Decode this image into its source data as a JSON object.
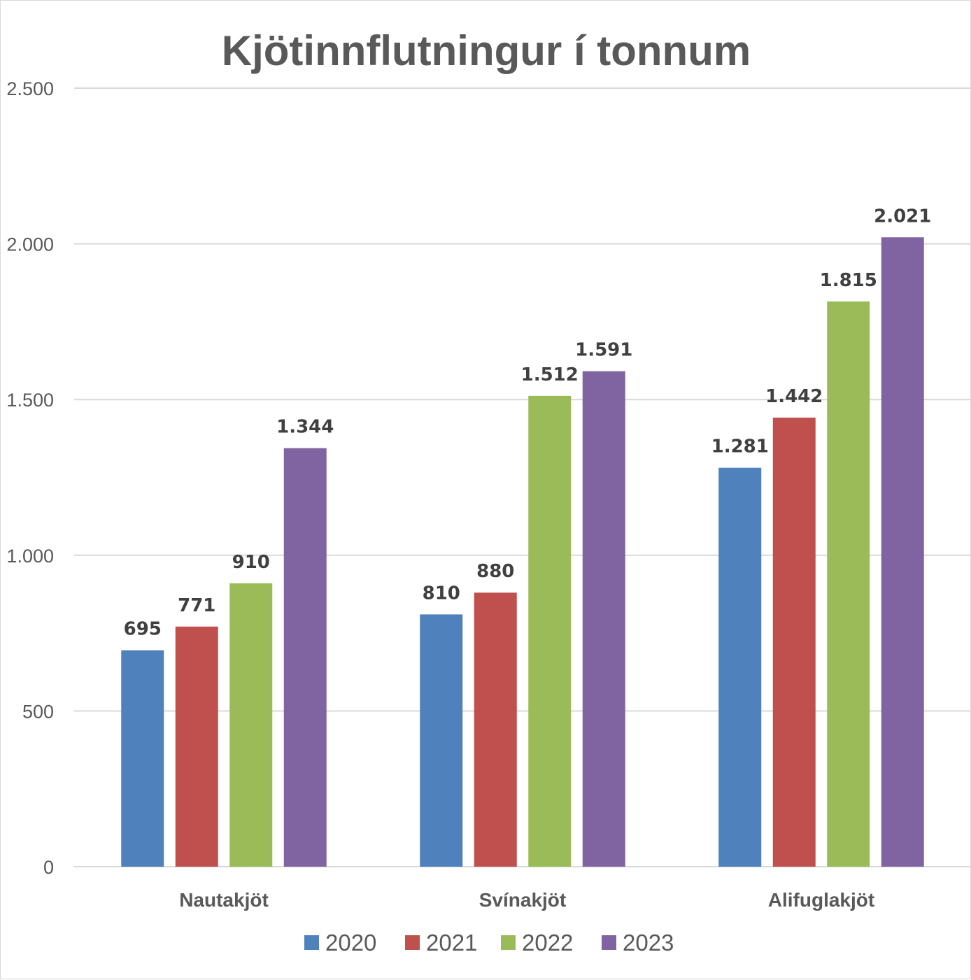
{
  "chart_data": {
    "type": "bar",
    "title": "Kjötinnflutningur í tonnum",
    "categories": [
      "Nautakjöt",
      "Svínakjöt",
      "Alifuglakjöt"
    ],
    "series": [
      {
        "name": "2020",
        "color": "#4f81bd",
        "values": [
          695,
          810,
          1281
        ],
        "labels": [
          "695",
          "810",
          "1.281"
        ]
      },
      {
        "name": "2021",
        "color": "#c0504d",
        "values": [
          771,
          880,
          1442
        ],
        "labels": [
          "771",
          "880",
          "1.442"
        ]
      },
      {
        "name": "2022",
        "color": "#9bbb59",
        "values": [
          910,
          1512,
          1815
        ],
        "labels": [
          "910",
          "1.512",
          "1.815"
        ]
      },
      {
        "name": "2023",
        "color": "#8064a2",
        "values": [
          1344,
          1591,
          2021
        ],
        "labels": [
          "1.344",
          "1.591",
          "2.021"
        ]
      }
    ],
    "yticks": [
      0,
      500,
      1000,
      1500,
      2000,
      2500
    ],
    "ytick_labels": [
      "0",
      "500",
      "1.000",
      "1.500",
      "2.000",
      "2.500"
    ],
    "ylim": [
      0,
      2500
    ],
    "grid": true,
    "legend_position": "bottom"
  }
}
